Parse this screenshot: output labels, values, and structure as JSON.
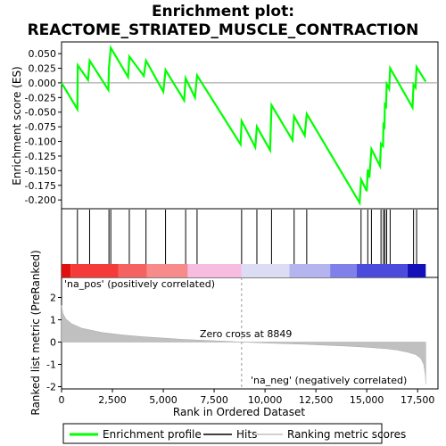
{
  "chart_data": {
    "type": "line",
    "title_line1": "Enrichment plot:",
    "title_line2": "REACTOME_STRIATED_MUSCLE_CONTRACTION",
    "es_panel": {
      "ylabel": "Enrichment score (ES)",
      "ylim": [
        -0.215,
        0.07
      ],
      "yticks": [
        0.05,
        0.025,
        0.0,
        -0.025,
        -0.05,
        -0.075,
        -0.1,
        -0.125,
        -0.15,
        -0.175,
        -0.2
      ],
      "ytick_labels": [
        "0.050",
        "0.025",
        "0.000",
        "-0.025",
        "-0.050",
        "-0.075",
        "-0.100",
        "-0.125",
        "-0.150",
        "-0.175",
        "-0.200"
      ],
      "series_color": "#00ff00",
      "points": [
        [
          0,
          0.0
        ],
        [
          780,
          -0.045
        ],
        [
          800,
          0.03
        ],
        [
          1300,
          0.005
        ],
        [
          1380,
          0.038
        ],
        [
          2300,
          -0.012
        ],
        [
          2330,
          0.025
        ],
        [
          2420,
          0.06
        ],
        [
          3270,
          0.01
        ],
        [
          3330,
          0.045
        ],
        [
          4040,
          0.012
        ],
        [
          4150,
          0.038
        ],
        [
          5000,
          -0.015
        ],
        [
          5110,
          0.022
        ],
        [
          6030,
          -0.03
        ],
        [
          6100,
          0.008
        ],
        [
          6560,
          -0.025
        ],
        [
          6660,
          0.013
        ],
        [
          8800,
          -0.105
        ],
        [
          8850,
          -0.065
        ],
        [
          9520,
          -0.11
        ],
        [
          9600,
          -0.075
        ],
        [
          10250,
          -0.115
        ],
        [
          10320,
          -0.038
        ],
        [
          11350,
          -0.098
        ],
        [
          11430,
          -0.057
        ],
        [
          11950,
          -0.09
        ],
        [
          12050,
          -0.053
        ],
        [
          14650,
          -0.205
        ],
        [
          14720,
          -0.165
        ],
        [
          15000,
          -0.185
        ],
        [
          15050,
          -0.148
        ],
        [
          15130,
          -0.162
        ],
        [
          15230,
          -0.113
        ],
        [
          15650,
          -0.142
        ],
        [
          15700,
          -0.104
        ],
        [
          15800,
          -0.108
        ],
        [
          15820,
          -0.072
        ],
        [
          15870,
          -0.075
        ],
        [
          15890,
          -0.037
        ],
        [
          15950,
          -0.04
        ],
        [
          15980,
          -0.002
        ],
        [
          16100,
          -0.01
        ],
        [
          16150,
          0.025
        ],
        [
          17250,
          -0.042
        ],
        [
          17300,
          -0.003
        ],
        [
          17400,
          -0.008
        ],
        [
          17450,
          0.027
        ],
        [
          17900,
          0.002
        ]
      ]
    },
    "hits": [
      780,
      1380,
      2330,
      2420,
      3330,
      4150,
      5110,
      6100,
      6660,
      8850,
      9600,
      10320,
      11430,
      12050,
      14720,
      15050,
      15230,
      15700,
      15820,
      15890,
      15980,
      16150,
      17300,
      17450
    ],
    "rank_panel": {
      "ylabel": "Ranked list metric (PreRanked)",
      "xlabel": "Rank in Ordered Dataset",
      "xlim": [
        0,
        18500
      ],
      "xticks": [
        0,
        2500,
        5000,
        7500,
        10000,
        12500,
        15000,
        17500
      ],
      "xtick_labels": [
        "0",
        "2,500",
        "5,000",
        "7,500",
        "10,000",
        "12,500",
        "15,000",
        "17,500"
      ],
      "ylim": [
        -2.1,
        2.9
      ],
      "yticks": [
        2,
        1,
        0,
        -1,
        -2
      ],
      "ytick_labels": [
        "2",
        "1",
        "0",
        "-1",
        "-2"
      ],
      "n_genes": 17900,
      "metric_curve": [
        [
          0,
          1.65
        ],
        [
          60,
          1.3
        ],
        [
          200,
          1.05
        ],
        [
          500,
          0.82
        ],
        [
          1000,
          0.62
        ],
        [
          2000,
          0.43
        ],
        [
          3000,
          0.32
        ],
        [
          4000,
          0.24
        ],
        [
          5000,
          0.18
        ],
        [
          6000,
          0.12
        ],
        [
          7000,
          0.08
        ],
        [
          8000,
          0.04
        ],
        [
          8849,
          0.0
        ],
        [
          10000,
          -0.04
        ],
        [
          11000,
          -0.07
        ],
        [
          12000,
          -0.1
        ],
        [
          13000,
          -0.14
        ],
        [
          14000,
          -0.18
        ],
        [
          15000,
          -0.23
        ],
        [
          16000,
          -0.3
        ],
        [
          16500,
          -0.36
        ],
        [
          17000,
          -0.45
        ],
        [
          17400,
          -0.56
        ],
        [
          17650,
          -0.72
        ],
        [
          17800,
          -1.0
        ],
        [
          17880,
          -1.5
        ],
        [
          17900,
          -1.9
        ]
      ],
      "zero_cross_label": "Zero cross at 8849",
      "zero_cross": 8849,
      "pos_label": "'na_pos' (positively correlated)",
      "neg_label": "'na_neg' (negatively correlated)",
      "pos_color": "#cc0000",
      "neg_color": "#0000cc"
    },
    "color_bar": [
      {
        "from": 0,
        "to": 450,
        "color": "#e01010"
      },
      {
        "from": 450,
        "to": 2800,
        "color": "#f53a3a"
      },
      {
        "from": 2800,
        "to": 4200,
        "color": "#f56262"
      },
      {
        "from": 4200,
        "to": 6200,
        "color": "#f78a8a"
      },
      {
        "from": 6200,
        "to": 8849,
        "color": "#f7bde0"
      },
      {
        "from": 8849,
        "to": 11200,
        "color": "#dcdcf4"
      },
      {
        "from": 11200,
        "to": 13200,
        "color": "#b4b4ee"
      },
      {
        "from": 13200,
        "to": 14500,
        "color": "#8080ea"
      },
      {
        "from": 14500,
        "to": 17000,
        "color": "#4c4cdc"
      },
      {
        "from": 17000,
        "to": 17900,
        "color": "#1212b8"
      }
    ],
    "legend": [
      {
        "label": "Enrichment profile",
        "kind": "line",
        "color": "#00ff00"
      },
      {
        "label": "Hits",
        "kind": "line",
        "color": "#000000"
      },
      {
        "label": "Ranking metric scores",
        "kind": "line",
        "color": "#c0c0c0"
      }
    ]
  }
}
